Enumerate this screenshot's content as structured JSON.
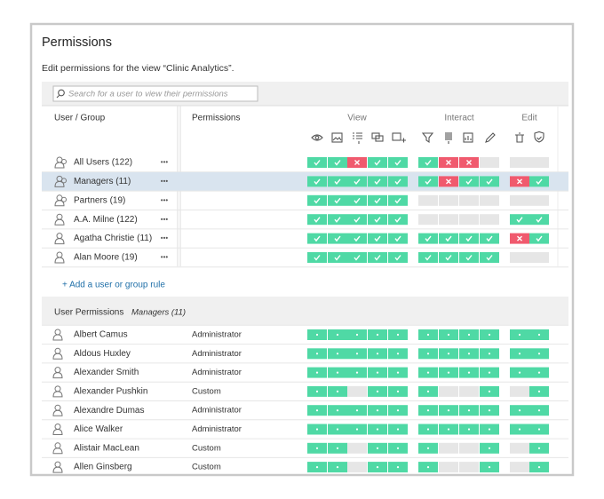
{
  "title": "Permissions",
  "subtitle": "Edit permissions for the view “Clinic Analytics”.",
  "search_placeholder": "Search for a user to view their permissions",
  "header": {
    "user_group": "User / Group",
    "permissions": "Permissions",
    "groups": [
      "View",
      "Interact",
      "Edit"
    ]
  },
  "more_label": "•••",
  "rules": [
    {
      "name": "All Users (122)",
      "kind": "group",
      "view": [
        "y",
        "y",
        "n",
        "y",
        "y"
      ],
      "interact": [
        "y",
        "n",
        "n",
        "-"
      ],
      "edit": [
        "-",
        "-"
      ]
    },
    {
      "name": "Managers (11)",
      "kind": "group",
      "selected": true,
      "view": [
        "y",
        "y",
        "y",
        "y",
        "y"
      ],
      "interact": [
        "y",
        "n",
        "y",
        "y"
      ],
      "edit": [
        "n",
        "y"
      ]
    },
    {
      "name": "Partners (19)",
      "kind": "group",
      "view": [
        "y",
        "y",
        "y",
        "y",
        "y"
      ],
      "interact": [
        "-",
        "-",
        "-",
        "-"
      ],
      "edit": [
        "-",
        "-"
      ]
    },
    {
      "name": "A.A. Milne (122)",
      "kind": "user",
      "view": [
        "y",
        "y",
        "y",
        "y",
        "y"
      ],
      "interact": [
        "-",
        "-",
        "-",
        "-"
      ],
      "edit": [
        "y",
        "y"
      ]
    },
    {
      "name": "Agatha Christie (11)",
      "kind": "user",
      "view": [
        "y",
        "y",
        "y",
        "y",
        "y"
      ],
      "interact": [
        "y",
        "y",
        "y",
        "y"
      ],
      "edit": [
        "n",
        "y"
      ]
    },
    {
      "name": "Alan Moore (19)",
      "kind": "user",
      "view": [
        "y",
        "y",
        "y",
        "y",
        "y"
      ],
      "interact": [
        "y",
        "y",
        "y",
        "y"
      ],
      "edit": [
        "-",
        "-"
      ]
    }
  ],
  "add_rule": "+ Add a user or group rule",
  "user_section": {
    "title": "User Permissions",
    "group": "Managers (11)"
  },
  "users": [
    {
      "name": "Albert Camus",
      "role": "Administrator",
      "view": [
        "d",
        "d",
        "d",
        "d",
        "d"
      ],
      "interact": [
        "d",
        "d",
        "d",
        "d"
      ],
      "edit": [
        "d",
        "d"
      ]
    },
    {
      "name": "Aldous Huxley",
      "role": "Administrator",
      "view": [
        "d",
        "d",
        "d",
        "d",
        "d"
      ],
      "interact": [
        "d",
        "d",
        "d",
        "d"
      ],
      "edit": [
        "d",
        "d"
      ]
    },
    {
      "name": "Alexander Smith",
      "role": "Administrator",
      "view": [
        "d",
        "d",
        "d",
        "d",
        "d"
      ],
      "interact": [
        "d",
        "d",
        "d",
        "d"
      ],
      "edit": [
        "d",
        "d"
      ]
    },
    {
      "name": "Alexander Pushkin",
      "role": "Custom",
      "view": [
        "d",
        "d",
        "-",
        "d",
        "d"
      ],
      "interact": [
        "d",
        "-",
        "-",
        "d"
      ],
      "edit": [
        "-",
        "d"
      ]
    },
    {
      "name": "Alexandre Dumas",
      "role": "Administrator",
      "view": [
        "d",
        "d",
        "d",
        "d",
        "d"
      ],
      "interact": [
        "d",
        "d",
        "d",
        "d"
      ],
      "edit": [
        "d",
        "d"
      ]
    },
    {
      "name": "Alice Walker",
      "role": "Administrator",
      "view": [
        "d",
        "d",
        "d",
        "d",
        "d"
      ],
      "interact": [
        "d",
        "d",
        "d",
        "d"
      ],
      "edit": [
        "d",
        "d"
      ]
    },
    {
      "name": "Alistair MacLean",
      "role": "Custom",
      "view": [
        "d",
        "d",
        "-",
        "d",
        "d"
      ],
      "interact": [
        "d",
        "-",
        "-",
        "d"
      ],
      "edit": [
        "-",
        "d"
      ]
    },
    {
      "name": "Allen Ginsberg",
      "role": "Custom",
      "view": [
        "d",
        "d",
        "-",
        "d",
        "d"
      ],
      "interact": [
        "d",
        "-",
        "-",
        "d"
      ],
      "edit": [
        "-",
        "d"
      ]
    }
  ]
}
